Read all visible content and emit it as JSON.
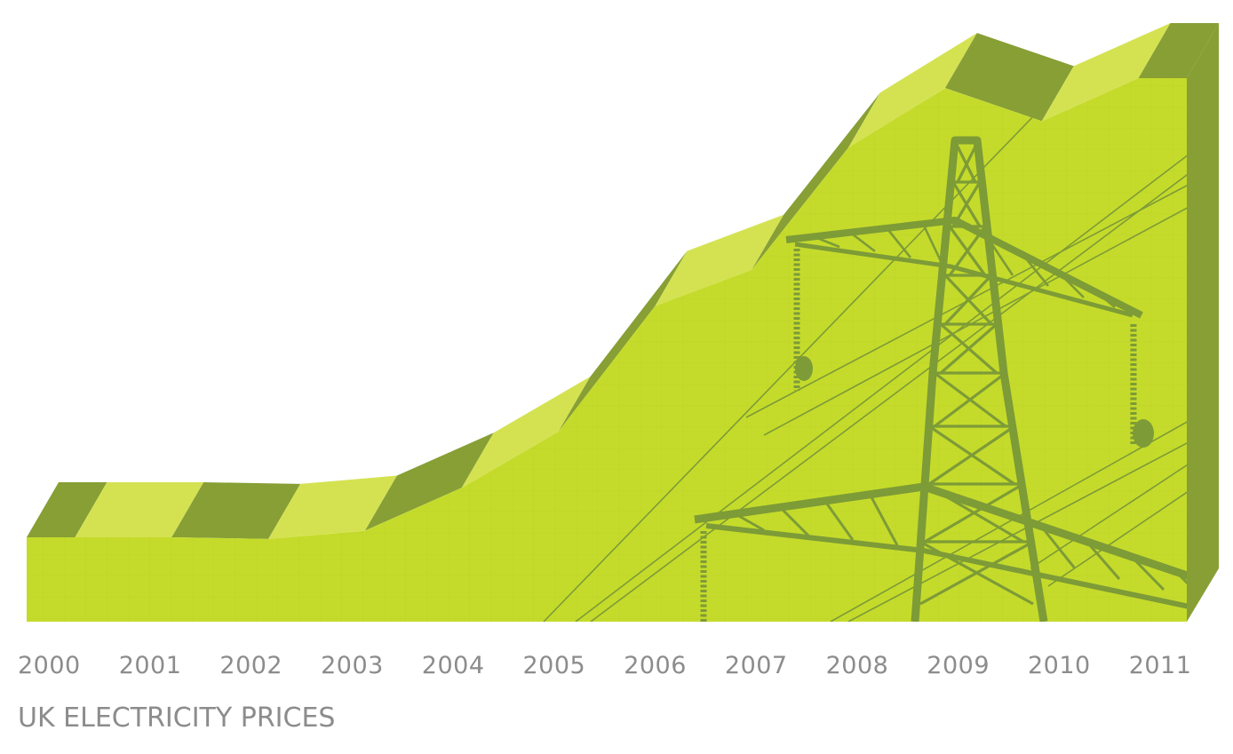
{
  "chart_data": {
    "type": "area",
    "title": "UK ELECTRICITY PRICES",
    "categories": [
      "2000",
      "2001",
      "2002",
      "2003",
      "2004",
      "2005",
      "2006",
      "2007",
      "2008",
      "2009",
      "2010",
      "2011"
    ],
    "series": [
      {
        "values": [
          100,
          100,
          99.5,
          102,
          115,
          132,
          170,
          181,
          218,
          236,
          226,
          239
        ]
      }
    ],
    "ylim": [
      0,
      250
    ],
    "grid": false,
    "legend": "none"
  },
  "colors": {
    "front_face": "#c5db2b",
    "top_light": "#d4e252",
    "top_dark": "#879f34",
    "side_face": "#879f34",
    "pylon": "#7d9b37",
    "grid_line": "#b6cc2a",
    "label": "#8c8c8c"
  },
  "decoration": {
    "illustration": "electricity-pylon-icon"
  }
}
